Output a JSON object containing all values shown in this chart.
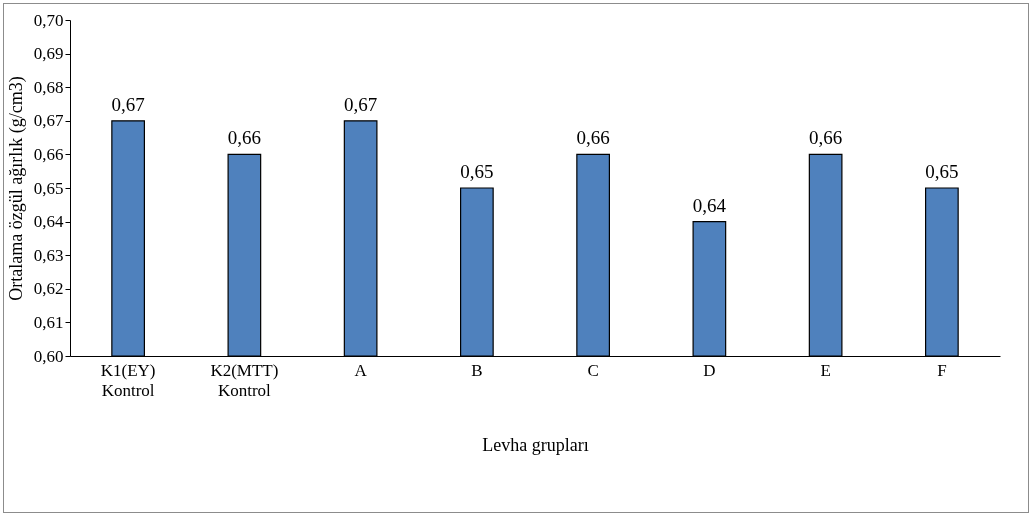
{
  "chart_data": {
    "type": "bar",
    "xlabel": "Levha grupları",
    "ylabel": "Ortalama özgül ağırlık (g/cm3)",
    "categories": [
      "K1(EY)\nKontrol",
      "K2(MTT)\nKontrol",
      "A",
      "B",
      "C",
      "D",
      "E",
      "F"
    ],
    "values": [
      0.67,
      0.66,
      0.67,
      0.65,
      0.66,
      0.64,
      0.66,
      0.65
    ],
    "value_labels": [
      "0,67",
      "0,66",
      "0,67",
      "0,65",
      "0,66",
      "0,64",
      "0,66",
      "0,65"
    ],
    "color": "#4f81bd",
    "ylim": [
      0.6,
      0.7
    ],
    "yticks": [
      {
        "value": 0.6,
        "label": "0,60"
      },
      {
        "value": 0.61,
        "label": "0,61"
      },
      {
        "value": 0.62,
        "label": "0,62"
      },
      {
        "value": 0.63,
        "label": "0,63"
      },
      {
        "value": 0.64,
        "label": "0,64"
      },
      {
        "value": 0.65,
        "label": "0,65"
      },
      {
        "value": 0.66,
        "label": "0,66"
      },
      {
        "value": 0.67,
        "label": "0,67"
      },
      {
        "value": 0.68,
        "label": "0,68"
      },
      {
        "value": 0.69,
        "label": "0,69"
      },
      {
        "value": 0.7,
        "label": "0,70"
      }
    ]
  }
}
